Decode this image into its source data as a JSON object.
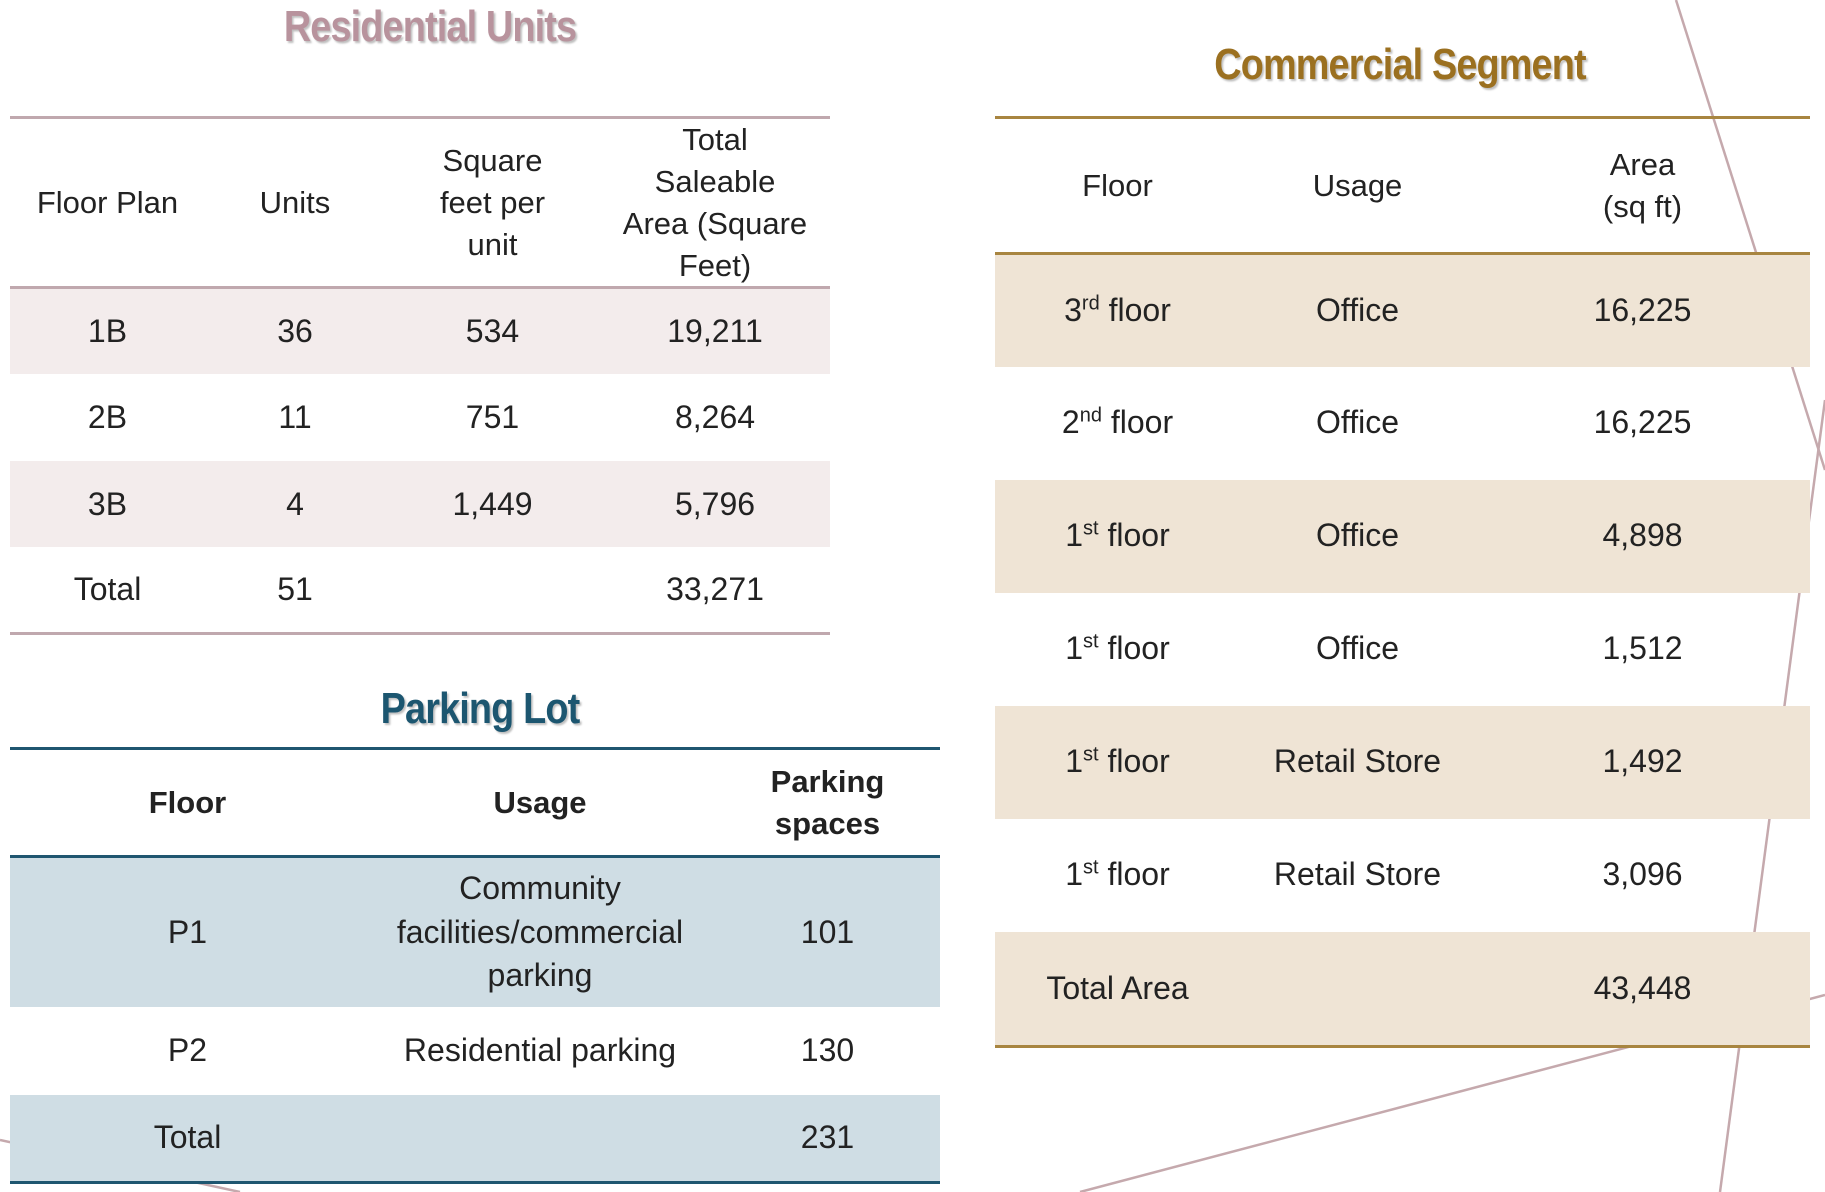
{
  "residential": {
    "title": "Residential Units",
    "headers": [
      "Floor Plan",
      "Units",
      "Square feet per unit",
      "Total Saleable Area (Square Feet)"
    ],
    "rows": [
      [
        "1B",
        "36",
        "534",
        "19,211"
      ],
      [
        "2B",
        "11",
        "751",
        "8,264"
      ],
      [
        "3B",
        "4",
        "1,449",
        "5,796"
      ],
      [
        "Total",
        "51",
        "",
        "33,271"
      ]
    ]
  },
  "parking": {
    "title": "Parking Lot",
    "headers": [
      "Floor",
      "Usage",
      "Parking spaces"
    ],
    "rows": [
      [
        "P1",
        "Community facilities/commercial parking",
        "101"
      ],
      [
        "P2",
        "Residential parking",
        "130"
      ],
      [
        "Total",
        "",
        "231"
      ]
    ]
  },
  "commercial": {
    "title": "Commercial Segment",
    "headers": [
      "Floor",
      "Usage",
      "Area (sq ft)"
    ],
    "rows": [
      {
        "num": "3",
        "sup": "rd",
        "floor": "floor",
        "usage": "Office",
        "area": "16,225"
      },
      {
        "num": "2",
        "sup": "nd",
        "floor": "floor",
        "usage": "Office",
        "area": "16,225"
      },
      {
        "num": "1",
        "sup": "st",
        "floor": "floor",
        "usage": "Office",
        "area": "4,898"
      },
      {
        "num": "1",
        "sup": "st",
        "floor": "floor",
        "usage": "Office",
        "area": "1,512"
      },
      {
        "num": "1",
        "sup": "st",
        "floor": "floor",
        "usage": "Retail Store",
        "area": "1,492"
      },
      {
        "num": "1",
        "sup": "st",
        "floor": "floor",
        "usage": "Retail Store",
        "area": "3,096"
      }
    ],
    "total": {
      "label": "Total Area",
      "area": "43,448"
    }
  }
}
